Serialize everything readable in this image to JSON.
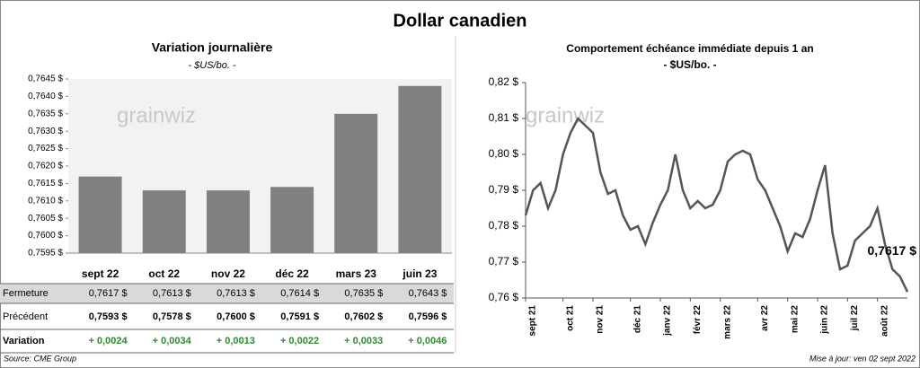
{
  "title": "Dollar canadien",
  "watermark": "grainwiz",
  "chart_data": [
    {
      "type": "bar",
      "title": "Variation  journalière",
      "subtitle": "- $US/bo. -",
      "categories": [
        "sept 22",
        "oct 22",
        "nov 22",
        "déc 22",
        "mars 23",
        "juin 23"
      ],
      "values": [
        0.7617,
        0.7613,
        0.7613,
        0.7614,
        0.7635,
        0.7643
      ],
      "color": "#808080",
      "ylim": [
        0.7595,
        0.7645
      ],
      "yticks": [
        {
          "value": 0.7595,
          "label": "0,7595 $"
        },
        {
          "value": 0.76,
          "label": "0,7600 $"
        },
        {
          "value": 0.7605,
          "label": "0,7605 $"
        },
        {
          "value": 0.761,
          "label": "0,7610 $"
        },
        {
          "value": 0.7615,
          "label": "0,7615 $"
        },
        {
          "value": 0.762,
          "label": "0,7620 $"
        },
        {
          "value": 0.7625,
          "label": "0,7625 $"
        },
        {
          "value": 0.763,
          "label": "0,7630 $"
        },
        {
          "value": 0.7635,
          "label": "0,7635 $"
        },
        {
          "value": 0.764,
          "label": "0,7640 $"
        },
        {
          "value": 0.7645,
          "label": "0,7645 $"
        }
      ]
    },
    {
      "type": "line",
      "title": "Comportement échéance immédiate depuis 1 an",
      "subtitle": "- $US/bo. -",
      "categories": [
        "sept 21",
        null,
        null,
        null,
        null,
        "oct 21",
        null,
        null,
        null,
        "nov 21",
        null,
        null,
        null,
        null,
        "déc 21",
        null,
        null,
        null,
        "janv 22",
        null,
        null,
        null,
        "févr 22",
        null,
        null,
        null,
        "mars 22",
        null,
        null,
        null,
        null,
        "avr 22",
        null,
        null,
        null,
        "mai 22",
        null,
        null,
        null,
        "juin 22",
        null,
        null,
        null,
        "juil 22",
        null,
        null,
        null,
        "août 22",
        null,
        null,
        null,
        null
      ],
      "values": [
        0.783,
        0.79,
        0.792,
        0.785,
        0.79,
        0.8,
        0.806,
        0.81,
        0.808,
        0.806,
        0.795,
        0.789,
        0.79,
        0.783,
        0.779,
        0.78,
        0.775,
        0.781,
        0.786,
        0.79,
        0.8,
        0.79,
        0.785,
        0.787,
        0.785,
        0.786,
        0.79,
        0.798,
        0.8,
        0.801,
        0.8,
        0.793,
        0.79,
        0.785,
        0.78,
        0.773,
        0.778,
        0.777,
        0.782,
        0.79,
        0.797,
        0.778,
        0.768,
        0.769,
        0.776,
        0.778,
        0.78,
        0.785,
        0.775,
        0.768,
        0.766,
        0.7617
      ],
      "color": "#555555",
      "annotation": "0,7617 $",
      "ylim": [
        0.76,
        0.82
      ],
      "yticks": [
        {
          "value": 0.76,
          "label": "0,76 $"
        },
        {
          "value": 0.77,
          "label": "0,77 $"
        },
        {
          "value": 0.78,
          "label": "0,78 $"
        },
        {
          "value": 0.79,
          "label": "0,79 $"
        },
        {
          "value": 0.8,
          "label": "0,80 $"
        },
        {
          "value": 0.81,
          "label": "0,81 $"
        },
        {
          "value": 0.82,
          "label": "0,82 $"
        }
      ]
    }
  ],
  "table": {
    "rows": [
      [
        "Fermeture",
        "0,7617 $",
        "0,7613 $",
        "0,7613 $",
        "0,7614 $",
        "0,7635 $",
        "0,7643 $"
      ],
      [
        "Précédent",
        "0,7593 $",
        "0,7578 $",
        "0,7600 $",
        "0,7591 $",
        "0,7602 $",
        "0,7596 $"
      ],
      [
        "Variation",
        "+ 0,0024",
        "+ 0,0034",
        "+ 0,0013",
        "+ 0,0022",
        "+ 0,0033",
        "+ 0,0046"
      ]
    ]
  },
  "source": "Source: CME Group",
  "updated": "Mise à jour: ven 02 sept 2022"
}
